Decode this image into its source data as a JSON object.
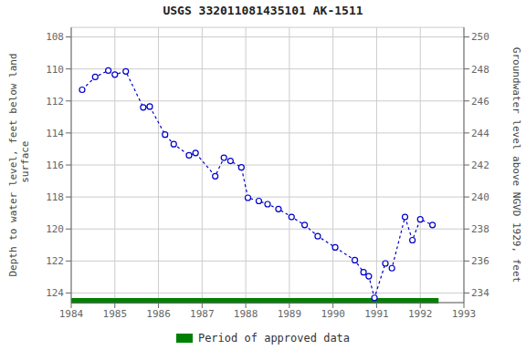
{
  "chart_data": {
    "type": "line",
    "title": "USGS 332011081435101 AK-1511",
    "y_label": "Depth to water level, feet below land\n surface",
    "y2_label": "Groundwater level above NGVD 1929, feet",
    "x": [
      1984.25,
      1984.55,
      1984.85,
      1985.0,
      1985.25,
      1985.65,
      1985.8,
      1986.15,
      1986.35,
      1986.7,
      1986.85,
      1987.3,
      1987.5,
      1987.65,
      1987.9,
      1988.05,
      1988.3,
      1988.5,
      1988.75,
      1989.05,
      1989.35,
      1989.65,
      1990.05,
      1990.5,
      1990.7,
      1990.82,
      1990.95,
      1991.2,
      1991.35,
      1991.65,
      1991.82,
      1992.0,
      1992.28
    ],
    "series": [
      {
        "color": "#0000cc",
        "marker": "circle",
        "line_style": "dashed",
        "values": [
          111.3,
          110.5,
          110.1,
          110.35,
          110.15,
          112.4,
          112.35,
          114.1,
          114.7,
          115.4,
          115.25,
          116.7,
          115.55,
          115.75,
          116.15,
          118.05,
          118.25,
          118.45,
          118.75,
          119.25,
          119.75,
          120.45,
          121.15,
          121.95,
          122.7,
          122.95,
          124.3,
          122.15,
          122.45,
          119.25,
          120.7,
          119.4,
          119.75
        ]
      }
    ],
    "xlim": [
      1984,
      1993
    ],
    "xticks": [
      1984,
      1985,
      1986,
      1987,
      1988,
      1989,
      1990,
      1991,
      1992,
      1993
    ],
    "ylim": [
      124.6,
      107.4
    ],
    "yticks": [
      108,
      110,
      112,
      114,
      116,
      118,
      120,
      122,
      124
    ],
    "y2lim": [
      233.4,
      250.6
    ],
    "y2ticks": [
      234,
      236,
      238,
      240,
      242,
      244,
      246,
      248,
      250
    ],
    "grid": true,
    "period": {
      "name": "Period of approved data",
      "color": "#008000",
      "start": 1984.0,
      "end": 1992.42
    }
  }
}
